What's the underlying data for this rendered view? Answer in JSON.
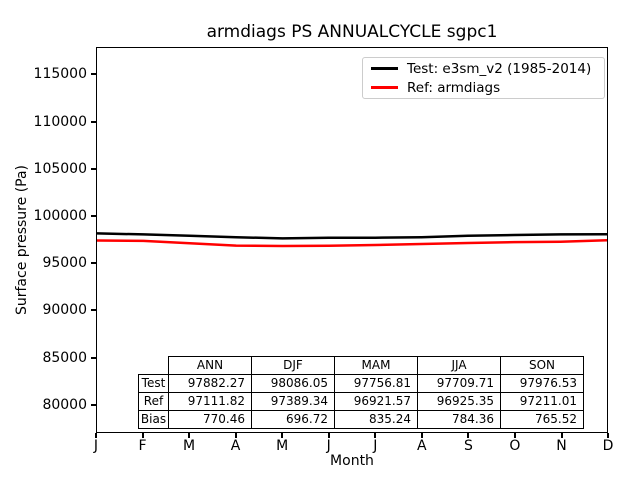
{
  "figure": {
    "background": "#ffffff",
    "axis_color": "#000000"
  },
  "chart_data": {
    "type": "line",
    "title": "armdiags PS ANNUALCYCLE sgpc1",
    "xlabel": "Month",
    "ylabel": "Surface pressure (Pa)",
    "x_tick_labels": [
      "J",
      "F",
      "M",
      "A",
      "M",
      "J",
      "J",
      "A",
      "S",
      "O",
      "N",
      "D"
    ],
    "y_ticks": [
      115000,
      110000,
      105000,
      100000,
      95000,
      90000,
      85000,
      80000
    ],
    "ylim": [
      77000,
      117900
    ],
    "xlim": [
      0,
      11
    ],
    "grid": false,
    "legend_position": "upper right",
    "series": [
      {
        "name": "Test: e3sm_v2 (1985-2014)",
        "color": "#000000",
        "values": [
          98150,
          98050,
          97900,
          97750,
          97620,
          97680,
          97700,
          97750,
          97900,
          97980,
          98050,
          98060
        ]
      },
      {
        "name": "Ref: armdiags",
        "color": "#ff0000",
        "values": [
          97400,
          97350,
          97100,
          96850,
          96815,
          96830,
          96920,
          97025,
          97130,
          97230,
          97270,
          97420
        ]
      }
    ],
    "table": {
      "col_headers": [
        "ANN",
        "DJF",
        "MAM",
        "JJA",
        "SON"
      ],
      "rows": [
        {
          "label": "Test",
          "values": [
            "97882.27",
            "98086.05",
            "97756.81",
            "97709.71",
            "97976.53"
          ]
        },
        {
          "label": "Ref",
          "values": [
            "97111.82",
            "97389.34",
            "96921.57",
            "96925.35",
            "97211.01"
          ]
        },
        {
          "label": "Bias",
          "values": [
            "770.46",
            "696.72",
            "835.24",
            "784.36",
            "765.52"
          ]
        }
      ]
    }
  }
}
